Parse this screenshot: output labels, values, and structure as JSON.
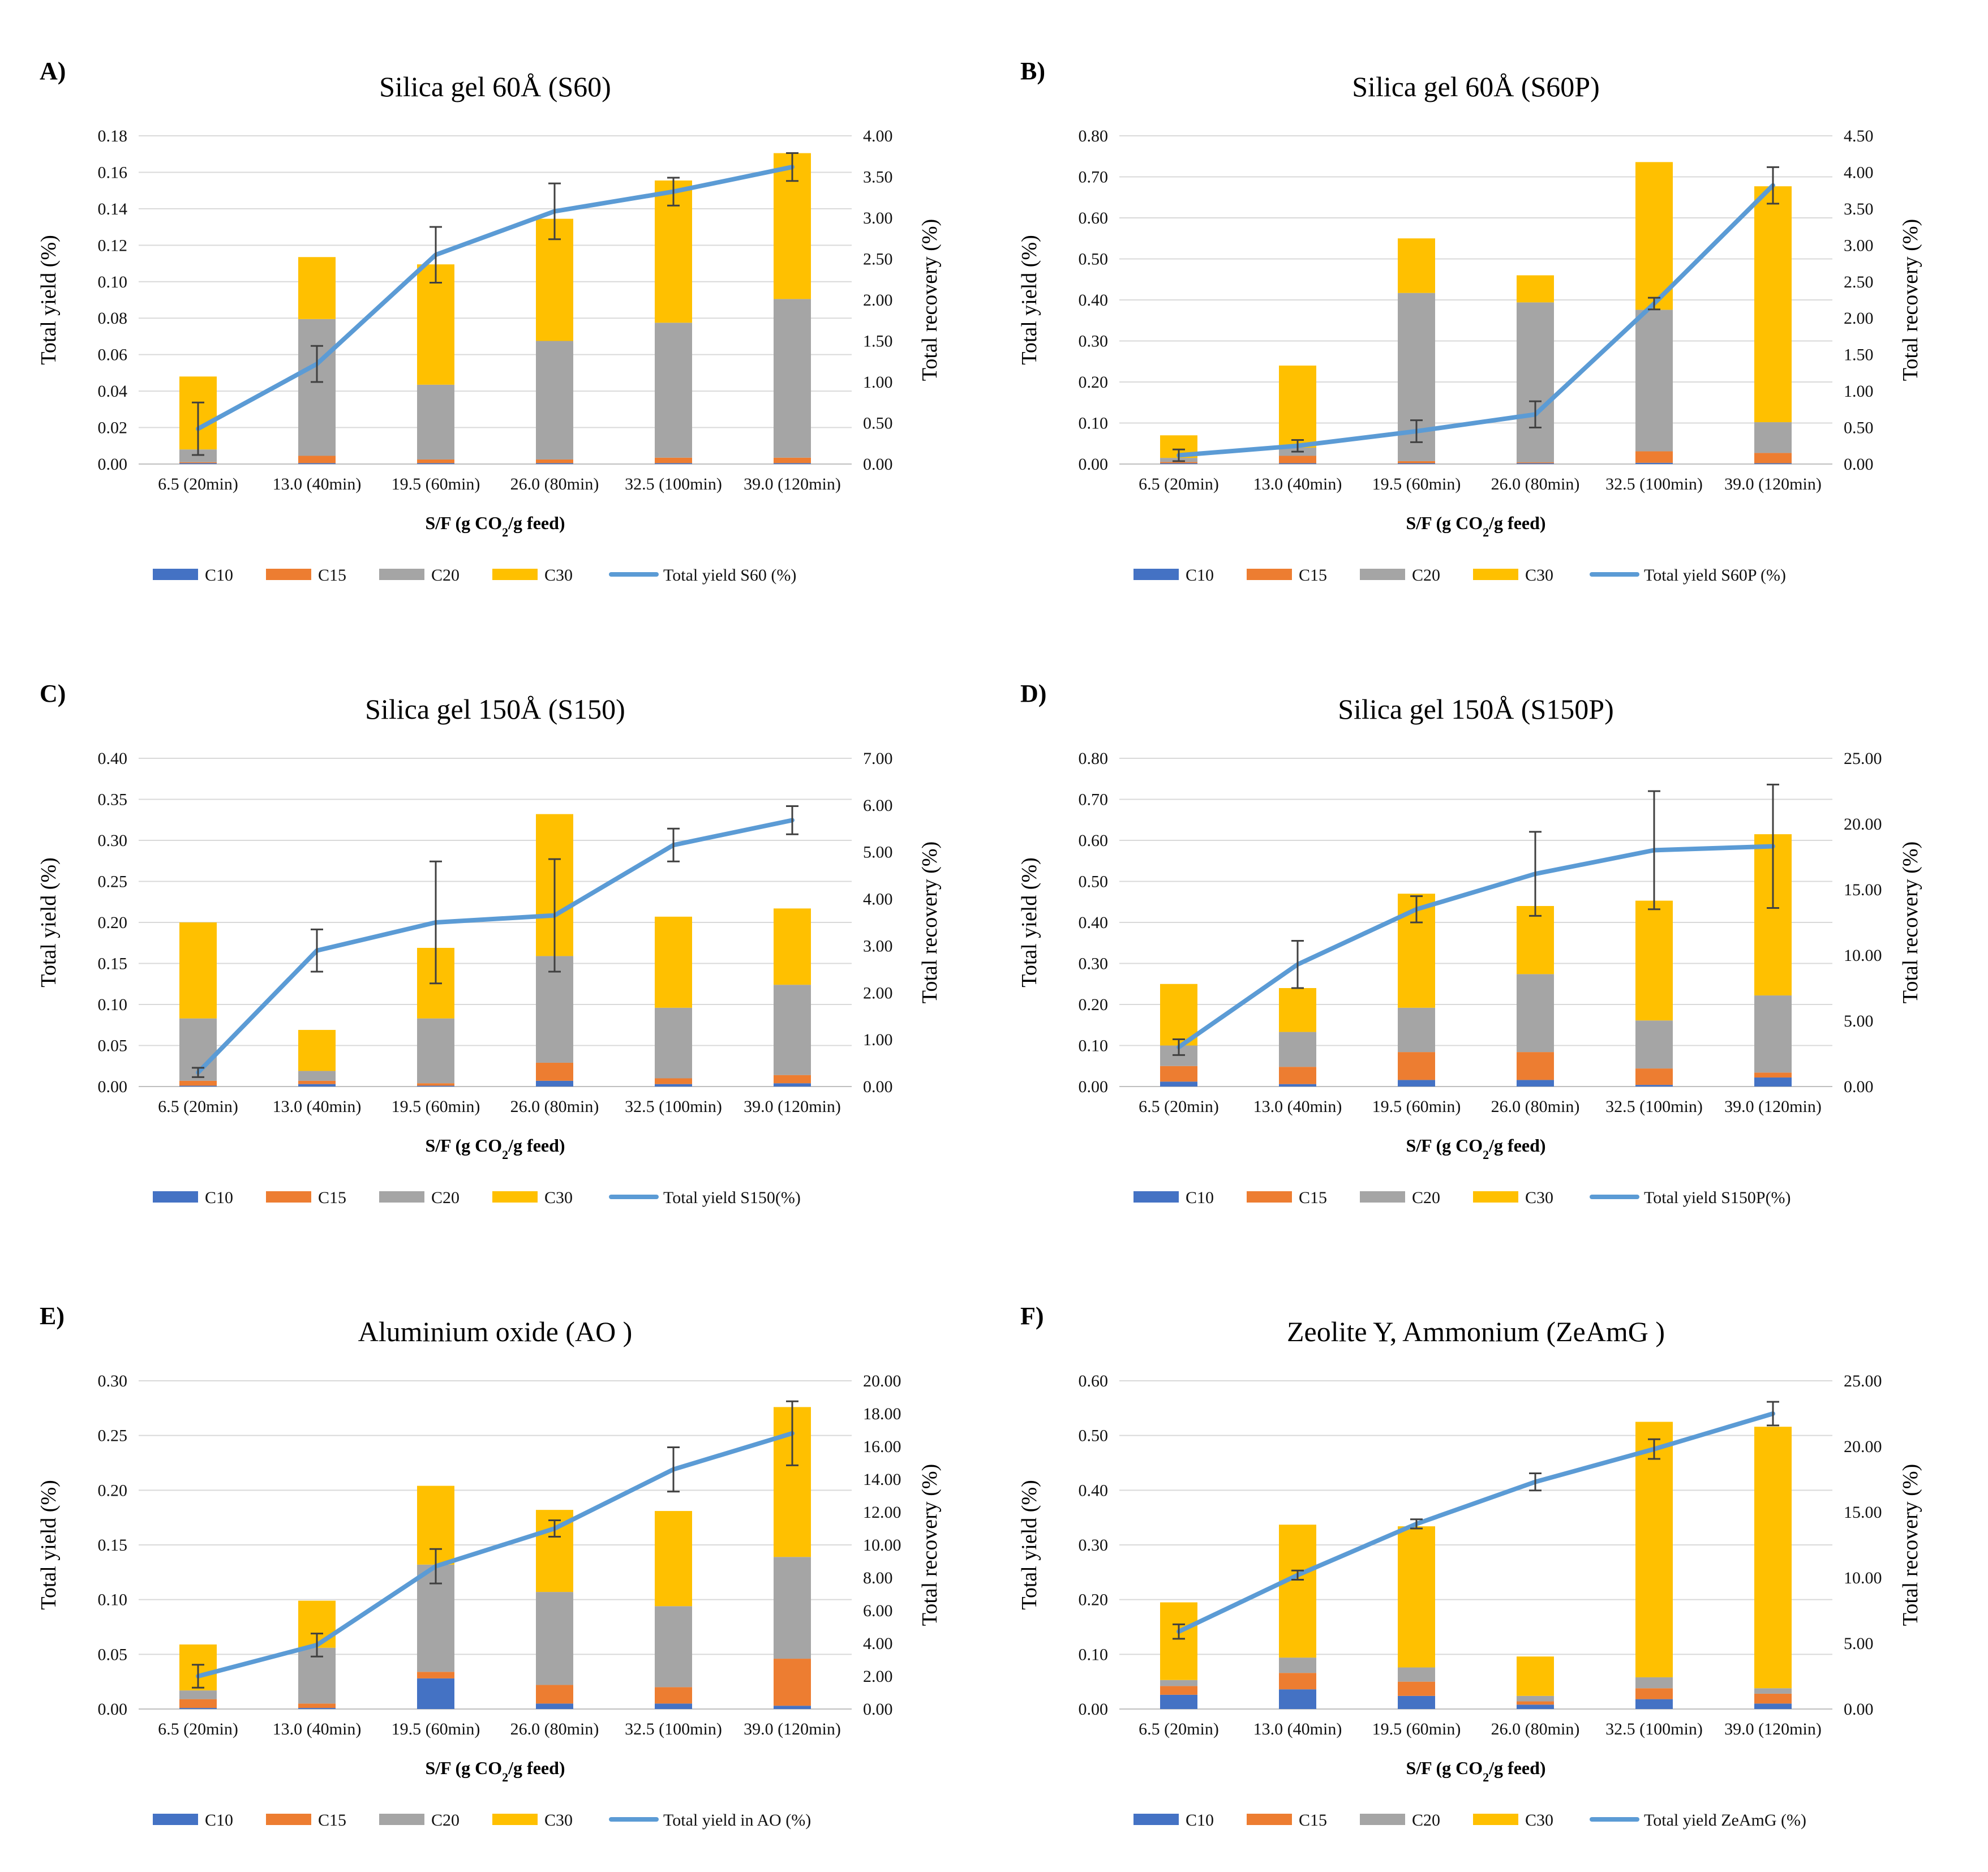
{
  "figure": {
    "legend_labels": {
      "c10": "C10",
      "c15": "C15",
      "c20": "C20",
      "c30": "C30"
    },
    "xlabel": {
      "prefix": "S/F (g CO",
      "sub": "2",
      "suffix": "/g feed)"
    }
  },
  "colors": {
    "C10": "#4472C4",
    "C15": "#ED7D31",
    "C20": "#A5A5A5",
    "C30": "#FFC000",
    "line": "#5B9BD5",
    "errorbar": "#404040",
    "grid": "#D9D9D9",
    "text": "#404040"
  },
  "chart_data": [
    {
      "panel": "A)",
      "type": "bar",
      "stacked": true,
      "title": "Silica gel 60Å (S60)",
      "ylabel": "Total yield  (%)",
      "y2label": "Total recovery (%)",
      "categories": [
        "6.5 (20min)",
        "13.0 (40min)",
        "19.5 (60min)",
        "26.0 (80min)",
        "32.5 (100min)",
        "39.0 (120min)"
      ],
      "ylim": [
        0,
        0.18
      ],
      "ystep": 0.02,
      "ydec": 2,
      "y2lim": [
        0,
        4.0
      ],
      "y2step": 0.5,
      "y2dec": 2,
      "series": [
        {
          "name": "C10",
          "values": [
            0.0005,
            0.0005,
            0.0005,
            0.0005,
            0.0005,
            0.0005
          ]
        },
        {
          "name": "C15",
          "values": [
            0.0005,
            0.004,
            0.002,
            0.002,
            0.003,
            0.003
          ]
        },
        {
          "name": "C20",
          "values": [
            0.007,
            0.075,
            0.041,
            0.065,
            0.074,
            0.087
          ]
        },
        {
          "name": "C30",
          "values": [
            0.04,
            0.034,
            0.066,
            0.067,
            0.078,
            0.08
          ]
        }
      ],
      "line": {
        "name": "Total  yield S60 (%)",
        "values": [
          0.43,
          1.22,
          2.55,
          3.08,
          3.32,
          3.62
        ],
        "err": [
          0.32,
          0.22,
          0.34,
          0.34,
          0.17,
          0.17
        ]
      }
    },
    {
      "panel": "B)",
      "type": "bar",
      "stacked": true,
      "title": "Silica gel 60Å (S60P)",
      "ylabel": "Total  yield (%)",
      "y2label": "Total recovery (%)",
      "categories": [
        "6.5 (20min)",
        "13.0 (40min)",
        "19.5 (60min)",
        "26.0 (80min)",
        "32.5 (100min)",
        "39.0 (120min)"
      ],
      "ylim": [
        0,
        0.8
      ],
      "ystep": 0.1,
      "ydec": 2,
      "y2lim": [
        0,
        4.5
      ],
      "y2step": 0.5,
      "y2dec": 2,
      "series": [
        {
          "name": "C10",
          "values": [
            0.002,
            0.002,
            0.002,
            0.002,
            0.003,
            0.002
          ]
        },
        {
          "name": "C15",
          "values": [
            0.003,
            0.018,
            0.005,
            0.002,
            0.028,
            0.025
          ]
        },
        {
          "name": "C20",
          "values": [
            0.01,
            0.02,
            0.41,
            0.39,
            0.345,
            0.075
          ]
        },
        {
          "name": "C30",
          "values": [
            0.055,
            0.2,
            0.133,
            0.066,
            0.36,
            0.575
          ]
        }
      ],
      "line": {
        "name": "Total  yield S60P (%)",
        "values": [
          0.12,
          0.25,
          0.45,
          0.68,
          2.2,
          3.82
        ],
        "err": [
          0.08,
          0.08,
          0.15,
          0.18,
          0.08,
          0.25
        ]
      }
    },
    {
      "panel": "C)",
      "type": "bar",
      "stacked": true,
      "title": "Silica gel 150Å (S150)",
      "ylabel": "Total yield (%)",
      "y2label": "Total recovery (%)",
      "categories": [
        "6.5 (20min)",
        "13.0 (40min)",
        "19.5 (60min)",
        "26.0 (80min)",
        "32.5 (100min)",
        "39.0 (120min)"
      ],
      "ylim": [
        0,
        0.4
      ],
      "ystep": 0.05,
      "ydec": 2,
      "y2lim": [
        0,
        7.0
      ],
      "y2step": 1.0,
      "y2dec": 2,
      "series": [
        {
          "name": "C10",
          "values": [
            0.001,
            0.003,
            0.001,
            0.007,
            0.003,
            0.004
          ]
        },
        {
          "name": "C15",
          "values": [
            0.006,
            0.004,
            0.003,
            0.022,
            0.007,
            0.01
          ]
        },
        {
          "name": "C20",
          "values": [
            0.076,
            0.012,
            0.079,
            0.13,
            0.086,
            0.11
          ]
        },
        {
          "name": "C30",
          "values": [
            0.117,
            0.05,
            0.086,
            0.173,
            0.111,
            0.093
          ]
        }
      ],
      "line": {
        "name": "Total  yield S150(%)",
        "values": [
          0.3,
          2.9,
          3.5,
          3.65,
          5.15,
          5.68
        ],
        "err": [
          0.1,
          0.45,
          1.3,
          1.2,
          0.35,
          0.3
        ]
      }
    },
    {
      "panel": "D)",
      "type": "bar",
      "stacked": true,
      "title": "Silica gel 150Å (S150P)",
      "ylabel": "Total  yield (%)",
      "y2label": "Total recovery (%)",
      "categories": [
        "6.5 (20min)",
        "13.0 (40min)",
        "19.5 (60min)",
        "26.0 (80min)",
        "32.5 (100min)",
        "39.0 (120min)"
      ],
      "ylim": [
        0,
        0.8
      ],
      "ystep": 0.1,
      "ydec": 2,
      "y2lim": [
        0,
        25.0
      ],
      "y2step": 5.0,
      "y2dec": 2,
      "series": [
        {
          "name": "C10",
          "values": [
            0.012,
            0.006,
            0.016,
            0.016,
            0.004,
            0.022
          ]
        },
        {
          "name": "C15",
          "values": [
            0.038,
            0.042,
            0.068,
            0.068,
            0.04,
            0.012
          ]
        },
        {
          "name": "C20",
          "values": [
            0.05,
            0.085,
            0.108,
            0.19,
            0.117,
            0.188
          ]
        },
        {
          "name": "C30",
          "values": [
            0.15,
            0.107,
            0.278,
            0.166,
            0.292,
            0.393
          ]
        }
      ],
      "line": {
        "name": "Total  yield S150P(%)",
        "values": [
          3.0,
          9.3,
          13.5,
          16.2,
          18.0,
          18.3
        ],
        "err": [
          0.6,
          1.8,
          1.0,
          3.2,
          4.5,
          4.7
        ]
      }
    },
    {
      "panel": "E)",
      "type": "bar",
      "stacked": true,
      "title": "Aluminium oxide (AO )",
      "ylabel": "Total yield  (%)",
      "y2label": "Total recovery (%)",
      "categories": [
        "6.5 (20min)",
        "13.0 (40min)",
        "19.5 (60min)",
        "26.0 (80min)",
        "32.5 (100min)",
        "39.0 (120min)"
      ],
      "ylim": [
        0,
        0.3
      ],
      "ystep": 0.05,
      "ydec": 2,
      "y2lim": [
        0,
        20.0
      ],
      "y2step": 2.0,
      "y2dec": 2,
      "series": [
        {
          "name": "C10",
          "values": [
            0.001,
            0.001,
            0.028,
            0.005,
            0.005,
            0.003
          ]
        },
        {
          "name": "C15",
          "values": [
            0.008,
            0.004,
            0.006,
            0.017,
            0.015,
            0.043
          ]
        },
        {
          "name": "C20",
          "values": [
            0.008,
            0.051,
            0.098,
            0.085,
            0.074,
            0.093
          ]
        },
        {
          "name": "C30",
          "values": [
            0.042,
            0.043,
            0.072,
            0.075,
            0.087,
            0.137
          ]
        }
      ],
      "line": {
        "name": "Total  yield in AO (%)",
        "values": [
          2.0,
          3.9,
          8.7,
          11.0,
          14.6,
          16.8
        ],
        "err": [
          0.7,
          0.7,
          1.05,
          0.5,
          1.35,
          1.95
        ]
      }
    },
    {
      "panel": "F)",
      "type": "bar",
      "stacked": true,
      "title": "Zeolite Y,  Ammonium (ZeAmG )",
      "ylabel": "Total yield (%)",
      "y2label": "Total recovery  (%)",
      "categories": [
        "6.5 (20min)",
        "13.0 (40min)",
        "19.5 (60min)",
        "26.0 (80min)",
        "32.5 (100min)",
        "39.0 (120min)"
      ],
      "ylim": [
        0,
        0.6
      ],
      "ystep": 0.1,
      "ydec": 2,
      "y2lim": [
        0,
        25.0
      ],
      "y2step": 5.0,
      "y2dec": 2,
      "series": [
        {
          "name": "C10",
          "values": [
            0.026,
            0.036,
            0.024,
            0.008,
            0.018,
            0.01
          ]
        },
        {
          "name": "C15",
          "values": [
            0.016,
            0.03,
            0.026,
            0.006,
            0.02,
            0.018
          ]
        },
        {
          "name": "C20",
          "values": [
            0.011,
            0.028,
            0.026,
            0.01,
            0.02,
            0.01
          ]
        },
        {
          "name": "C30",
          "values": [
            0.142,
            0.243,
            0.258,
            0.072,
            0.467,
            0.478
          ]
        }
      ],
      "line": {
        "name": "Total  yield ZeAmG (%)",
        "values": [
          5.9,
          10.2,
          14.1,
          17.3,
          19.8,
          22.5
        ],
        "err": [
          0.55,
          0.35,
          0.35,
          0.65,
          0.75,
          0.9
        ]
      }
    }
  ]
}
